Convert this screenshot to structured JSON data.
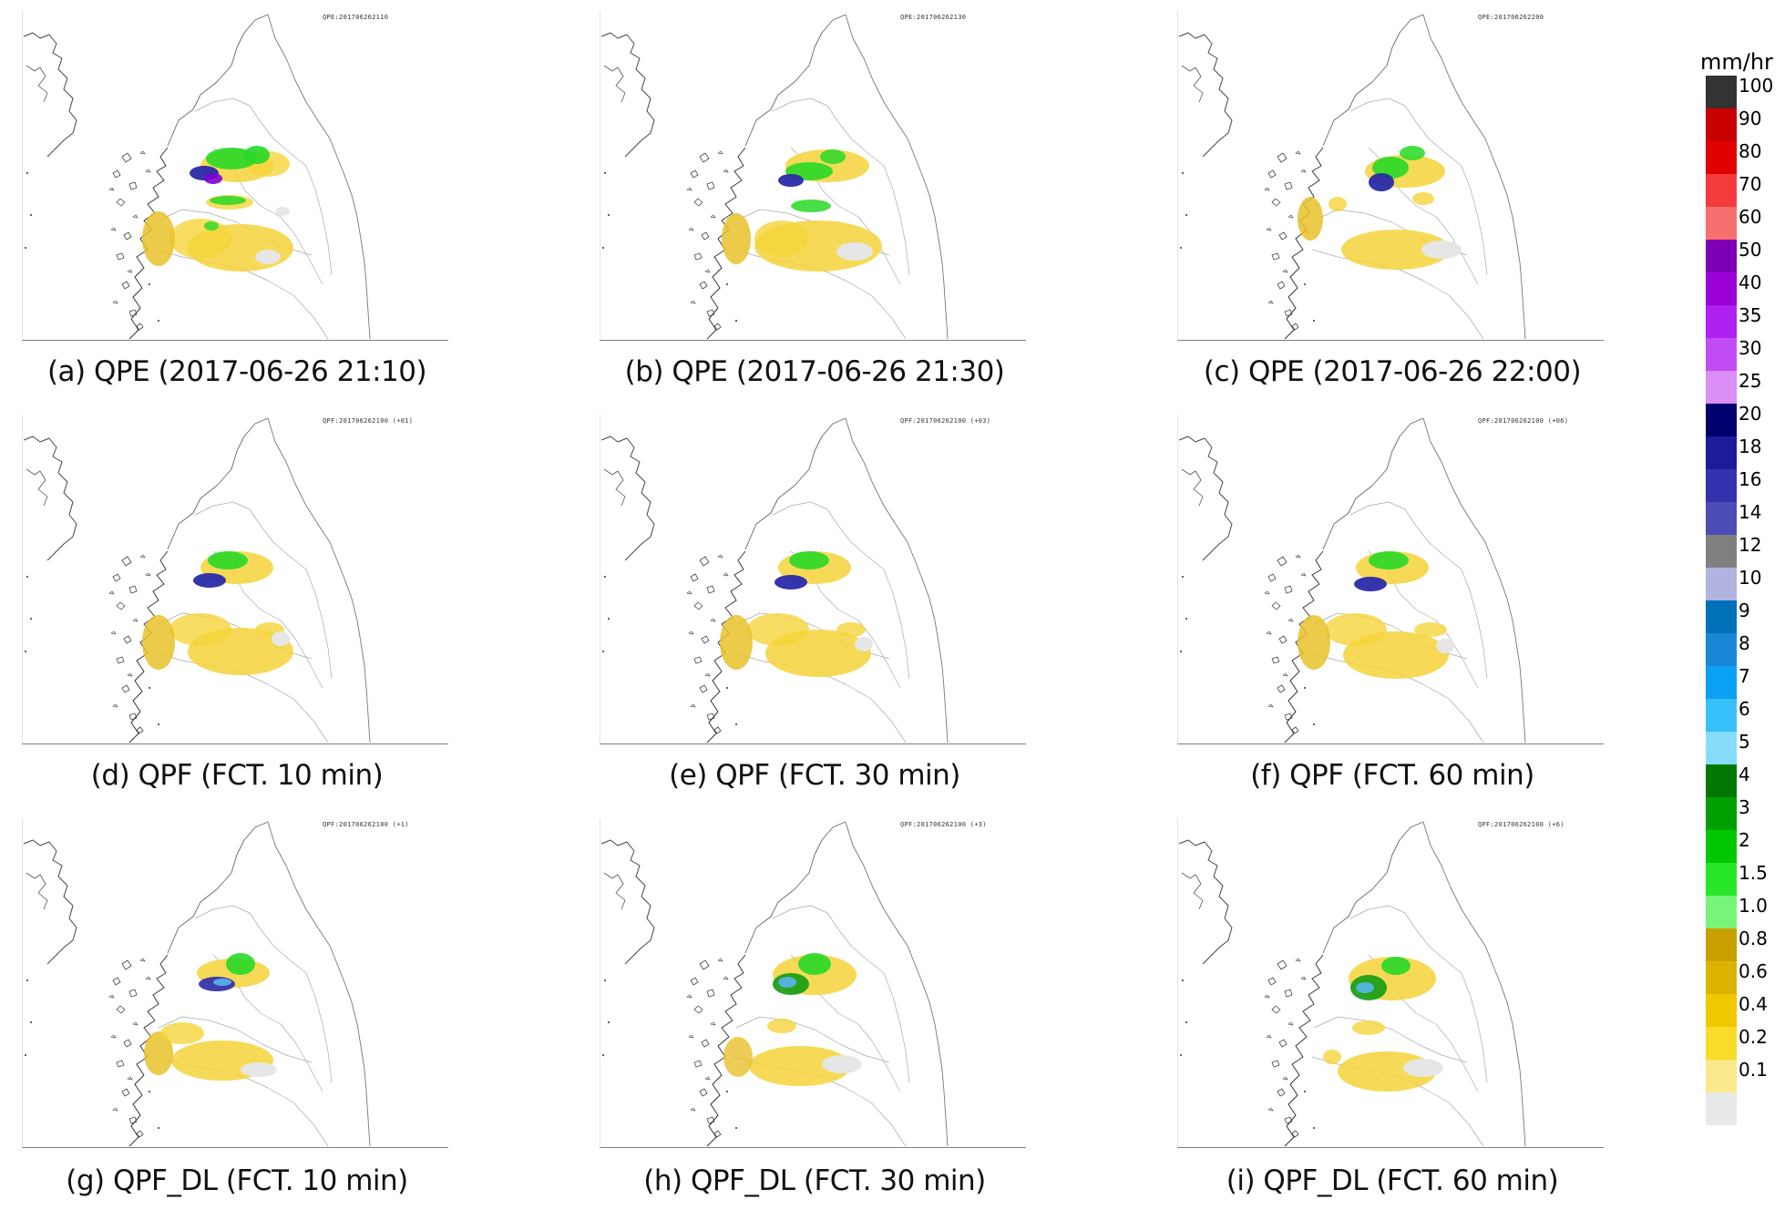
{
  "panels": [
    {
      "caption": "(a) QPE (2017-06-26 21:10)",
      "stamp": "QPE:201706262110",
      "variant": "qpe1"
    },
    {
      "caption": "(b) QPE (2017-06-26 21:30)",
      "stamp": "QPE:201706262130",
      "variant": "qpe2"
    },
    {
      "caption": "(c) QPE (2017-06-26 22:00)",
      "stamp": "QPE:201706262200",
      "variant": "qpe3"
    },
    {
      "caption": "(d) QPF (FCT. 10 min)",
      "stamp": "QPF:201706262100 (+01)",
      "variant": "qpf1"
    },
    {
      "caption": "(e) QPF (FCT. 30 min)",
      "stamp": "QPF:201706262100 (+03)",
      "variant": "qpf2"
    },
    {
      "caption": "(f) QPF (FCT. 60 min)",
      "stamp": "QPF:201706262100 (+06)",
      "variant": "qpf3"
    },
    {
      "caption": "(g) QPF_DL (FCT. 10 min)",
      "stamp": "QPF:201706262100 (+1)",
      "variant": "dl1"
    },
    {
      "caption": "(h) QPF_DL (FCT. 30 min)",
      "stamp": "QPF:201706262100 (+3)",
      "variant": "dl2"
    },
    {
      "caption": "(i) QPF_DL (FCT. 60 min)",
      "stamp": "QPF:201706262100 (+6)",
      "variant": "dl3"
    }
  ],
  "legend": {
    "title": "mm/hr",
    "entries": [
      {
        "label": "100",
        "color": "#333333"
      },
      {
        "label": "90",
        "color": "#c80000"
      },
      {
        "label": "80",
        "color": "#e00000"
      },
      {
        "label": "70",
        "color": "#f43c3c"
      },
      {
        "label": "60",
        "color": "#f77070"
      },
      {
        "label": "50",
        "color": "#7d00b4"
      },
      {
        "label": "40",
        "color": "#9a00d6"
      },
      {
        "label": "35",
        "color": "#b020f0"
      },
      {
        "label": "30",
        "color": "#c24cf5"
      },
      {
        "label": "25",
        "color": "#dc8ef7"
      },
      {
        "label": "20",
        "color": "#00006e"
      },
      {
        "label": "18",
        "color": "#1c1c9a"
      },
      {
        "label": "16",
        "color": "#3333b0"
      },
      {
        "label": "14",
        "color": "#4c4cb4"
      },
      {
        "label": "12",
        "color": "#808080"
      },
      {
        "label": "10",
        "color": "#b2b4e0"
      },
      {
        "label": "9",
        "color": "#0070b8"
      },
      {
        "label": "8",
        "color": "#1a86d6"
      },
      {
        "label": "7",
        "color": "#0aa0f4"
      },
      {
        "label": "6",
        "color": "#38c0f8"
      },
      {
        "label": "5",
        "color": "#86dcfb"
      },
      {
        "label": "4",
        "color": "#007800"
      },
      {
        "label": "3",
        "color": "#00a000"
      },
      {
        "label": "2",
        "color": "#00c800"
      },
      {
        "label": "1.5",
        "color": "#28e628"
      },
      {
        "label": "1.0",
        "color": "#78f578"
      },
      {
        "label": "0.8",
        "color": "#c8a000"
      },
      {
        "label": "0.6",
        "color": "#dcb400"
      },
      {
        "label": "0.4",
        "color": "#f0c800"
      },
      {
        "label": "0.2",
        "color": "#f8dc28"
      },
      {
        "label": "0.1",
        "color": "#fae88c"
      },
      {
        "label": "",
        "color": "#e8e8e8"
      }
    ]
  }
}
